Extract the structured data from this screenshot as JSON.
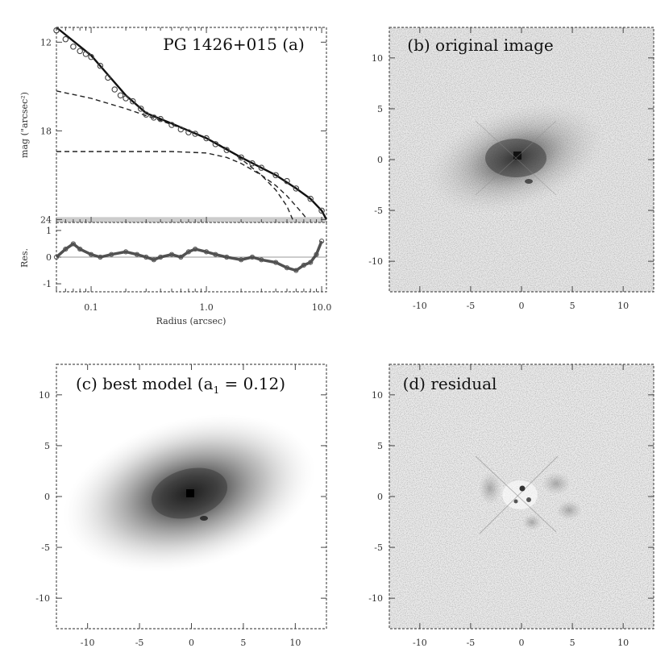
{
  "chart_data": [
    {
      "panel": "a",
      "type": "scatter",
      "title": "PG 1426+015 (a)",
      "xlabel": "Radius (arcsec)",
      "xscale": "log",
      "xlim": [
        0.05,
        11
      ],
      "xticks": [
        {
          "v": 0.1,
          "label": "0.1"
        },
        {
          "v": 1,
          "label": "1.0"
        },
        {
          "v": 10,
          "label": "10.0"
        }
      ],
      "top": {
        "ylabel": "mag (\"arcsec²)",
        "ylim": [
          24.2,
          11.0
        ],
        "yticks": [
          {
            "v": 12,
            "label": "12"
          },
          {
            "v": 18,
            "label": "18"
          },
          {
            "v": 24,
            "label": "24"
          }
        ],
        "data_points": [
          {
            "x": 0.05,
            "y": 11.2
          },
          {
            "x": 0.06,
            "y": 11.8
          },
          {
            "x": 0.07,
            "y": 12.3
          },
          {
            "x": 0.08,
            "y": 12.6
          },
          {
            "x": 0.09,
            "y": 12.8
          },
          {
            "x": 0.1,
            "y": 13.0
          },
          {
            "x": 0.12,
            "y": 13.6
          },
          {
            "x": 0.14,
            "y": 14.4
          },
          {
            "x": 0.16,
            "y": 15.2
          },
          {
            "x": 0.18,
            "y": 15.6
          },
          {
            "x": 0.2,
            "y": 15.8
          },
          {
            "x": 0.23,
            "y": 16.0
          },
          {
            "x": 0.27,
            "y": 16.5
          },
          {
            "x": 0.3,
            "y": 16.9
          },
          {
            "x": 0.35,
            "y": 17.1
          },
          {
            "x": 0.4,
            "y": 17.2
          },
          {
            "x": 0.5,
            "y": 17.6
          },
          {
            "x": 0.6,
            "y": 17.9
          },
          {
            "x": 0.7,
            "y": 18.1
          },
          {
            "x": 0.8,
            "y": 18.2
          },
          {
            "x": 1.0,
            "y": 18.5
          },
          {
            "x": 1.2,
            "y": 18.9
          },
          {
            "x": 1.5,
            "y": 19.3
          },
          {
            "x": 2.0,
            "y": 19.8
          },
          {
            "x": 2.5,
            "y": 20.2
          },
          {
            "x": 3.0,
            "y": 20.5
          },
          {
            "x": 4.0,
            "y": 21.0
          },
          {
            "x": 5.0,
            "y": 21.4
          },
          {
            "x": 6.0,
            "y": 21.9
          },
          {
            "x": 8.0,
            "y": 22.6
          },
          {
            "x": 10.0,
            "y": 23.4
          }
        ],
        "model_curve": [
          {
            "x": 0.05,
            "y": 11.0
          },
          {
            "x": 0.1,
            "y": 12.9
          },
          {
            "x": 0.2,
            "y": 15.6
          },
          {
            "x": 0.3,
            "y": 16.8
          },
          {
            "x": 0.5,
            "y": 17.5
          },
          {
            "x": 1.0,
            "y": 18.5
          },
          {
            "x": 2.0,
            "y": 19.8
          },
          {
            "x": 4.0,
            "y": 21.0
          },
          {
            "x": 6.0,
            "y": 21.9
          },
          {
            "x": 8.0,
            "y": 22.6
          },
          {
            "x": 10.0,
            "y": 23.4
          },
          {
            "x": 11.0,
            "y": 24.0
          }
        ],
        "component_curves": [
          [
            {
              "x": 0.05,
              "y": 15.3
            },
            {
              "x": 0.1,
              "y": 15.8
            },
            {
              "x": 0.2,
              "y": 16.5
            },
            {
              "x": 0.4,
              "y": 17.3
            },
            {
              "x": 0.7,
              "y": 18.0
            },
            {
              "x": 1.0,
              "y": 18.5
            },
            {
              "x": 1.5,
              "y": 19.2
            },
            {
              "x": 2.0,
              "y": 19.9
            },
            {
              "x": 3.0,
              "y": 21.0
            },
            {
              "x": 4.0,
              "y": 22.0
            },
            {
              "x": 5.0,
              "y": 23.1
            },
            {
              "x": 5.6,
              "y": 24.0
            }
          ],
          [
            {
              "x": 0.05,
              "y": 19.4
            },
            {
              "x": 0.5,
              "y": 19.4
            },
            {
              "x": 1.0,
              "y": 19.5
            },
            {
              "x": 1.5,
              "y": 19.8
            },
            {
              "x": 2.0,
              "y": 20.2
            },
            {
              "x": 3.0,
              "y": 21.0
            },
            {
              "x": 4.0,
              "y": 21.7
            },
            {
              "x": 5.0,
              "y": 22.4
            },
            {
              "x": 6.0,
              "y": 23.1
            },
            {
              "x": 7.0,
              "y": 23.7
            },
            {
              "x": 7.5,
              "y": 24.0
            }
          ]
        ]
      },
      "bottom": {
        "ylabel": "Res.",
        "ylim": [
          -1.3,
          1.3
        ],
        "yticks": [
          {
            "v": -1,
            "label": "-1"
          },
          {
            "v": 0,
            "label": "0"
          },
          {
            "v": 1,
            "label": "1"
          }
        ],
        "residuals": [
          {
            "x": 0.05,
            "y": 0.0
          },
          {
            "x": 0.06,
            "y": 0.3
          },
          {
            "x": 0.07,
            "y": 0.5
          },
          {
            "x": 0.08,
            "y": 0.3
          },
          {
            "x": 0.1,
            "y": 0.1
          },
          {
            "x": 0.12,
            "y": 0.0
          },
          {
            "x": 0.15,
            "y": 0.1
          },
          {
            "x": 0.2,
            "y": 0.2
          },
          {
            "x": 0.25,
            "y": 0.1
          },
          {
            "x": 0.3,
            "y": 0.0
          },
          {
            "x": 0.35,
            "y": -0.1
          },
          {
            "x": 0.4,
            "y": 0.0
          },
          {
            "x": 0.5,
            "y": 0.1
          },
          {
            "x": 0.6,
            "y": 0.0
          },
          {
            "x": 0.7,
            "y": 0.2
          },
          {
            "x": 0.8,
            "y": 0.3
          },
          {
            "x": 1.0,
            "y": 0.2
          },
          {
            "x": 1.2,
            "y": 0.1
          },
          {
            "x": 1.5,
            "y": 0.0
          },
          {
            "x": 2.0,
            "y": -0.1
          },
          {
            "x": 2.5,
            "y": 0.0
          },
          {
            "x": 3.0,
            "y": -0.1
          },
          {
            "x": 4.0,
            "y": -0.2
          },
          {
            "x": 5.0,
            "y": -0.4
          },
          {
            "x": 6.0,
            "y": -0.5
          },
          {
            "x": 7.0,
            "y": -0.3
          },
          {
            "x": 8.0,
            "y": -0.2
          },
          {
            "x": 9.0,
            "y": 0.1
          },
          {
            "x": 10.0,
            "y": 0.6
          }
        ]
      }
    },
    {
      "panel": "b",
      "type": "heatmap",
      "title": "(b) original image",
      "xlim": [
        -13,
        13
      ],
      "ylim": [
        -13,
        13
      ],
      "xticks": [
        -10,
        -5,
        0,
        5,
        10
      ],
      "yticks": [
        -10,
        -5,
        0,
        5,
        10
      ],
      "grid": false
    },
    {
      "panel": "c",
      "type": "heatmap",
      "title": "(c) best model (a",
      "title_sub": "1",
      "title_tail": " = 0.12)",
      "xlim": [
        -13,
        13
      ],
      "ylim": [
        -13,
        13
      ],
      "xticks": [
        -10,
        -5,
        0,
        5,
        10
      ],
      "yticks": [
        -10,
        -5,
        0,
        5,
        10
      ],
      "grid": false
    },
    {
      "panel": "d",
      "type": "heatmap",
      "title": "(d) residual",
      "xlim": [
        -13,
        13
      ],
      "ylim": [
        -13,
        13
      ],
      "xticks": [
        -10,
        -5,
        0,
        5,
        10
      ],
      "yticks": [
        -10,
        -5,
        0,
        5,
        10
      ],
      "grid": false
    }
  ]
}
